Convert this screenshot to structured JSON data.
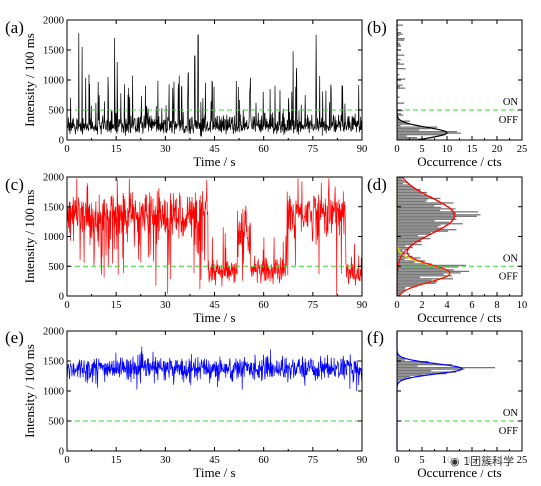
{
  "threshold_labels": {
    "on": "ON",
    "off": "OFF"
  },
  "colors": {
    "a": "#000000",
    "c": "#ff0000",
    "e": "#0000ff",
    "threshold": "#33dd33",
    "hist": "#777777",
    "fit_black": "#000000",
    "fit_red": "#ff0000",
    "fit_yellow": "#e8e800",
    "fit_blue": "#0000ff"
  },
  "watermark": {
    "icon": "wechat-logo-icon",
    "text": "1团簇科学"
  },
  "chart_data": [
    {
      "id": "a",
      "panel_label": "(a)",
      "type": "line",
      "xlabel": "Time / s",
      "ylabel": "Intensity / 100 ms",
      "xlim": [
        0,
        90
      ],
      "ylim": [
        0,
        2000
      ],
      "xticks": [
        "0",
        "15",
        "30",
        "45",
        "60",
        "75",
        "90"
      ],
      "yticks": [
        "0",
        "500",
        "1000",
        "1500",
        "2000"
      ],
      "threshold": 500,
      "series": [
        {
          "values_description": "blinking trace, baseline ~120-400 with spikes to ~1800",
          "color": "#000000"
        }
      ],
      "trace_params": {
        "mode": "blink_a",
        "n": 900
      }
    },
    {
      "id": "b",
      "panel_label": "(b)",
      "type": "bar",
      "xlabel": "Occurrence / cts",
      "xlim": [
        0,
        25
      ],
      "ylim": [
        0,
        2000
      ],
      "xticks": [
        "0",
        "5",
        "10",
        "15",
        "20",
        "25"
      ],
      "threshold": 500,
      "peaks": [
        {
          "center": 120,
          "sigma": 90,
          "amplitude": 10
        }
      ],
      "fit_color": "#000000"
    },
    {
      "id": "c",
      "panel_label": "(c)",
      "type": "line",
      "xlabel": "Time / s",
      "ylabel": "Intensity / 100 ms",
      "xlim": [
        0,
        90
      ],
      "ylim": [
        0,
        2000
      ],
      "xticks": [
        "0",
        "15",
        "30",
        "45",
        "60",
        "75",
        "90"
      ],
      "yticks": [
        "0",
        "500",
        "1000",
        "1500",
        "2000"
      ],
      "threshold": 500,
      "segments": [
        {
          "from": 0,
          "to": 43,
          "level": 1350
        },
        {
          "from": 43,
          "to": 52,
          "level": 380
        },
        {
          "from": 52,
          "to": 56,
          "level": 1100
        },
        {
          "from": 56,
          "to": 67,
          "level": 420
        },
        {
          "from": 67,
          "to": 85,
          "level": 1400
        },
        {
          "from": 85,
          "to": 90,
          "level": 380
        }
      ],
      "trace_params": {
        "mode": "segments",
        "n": 900
      }
    },
    {
      "id": "d",
      "panel_label": "(d)",
      "type": "bar",
      "xlabel": "Occurrence / cts",
      "xlim": [
        0,
        10
      ],
      "ylim": [
        0,
        2000
      ],
      "xticks": [
        "0",
        "2",
        "4",
        "6",
        "8",
        "10"
      ],
      "threshold": 500,
      "peaks": [
        {
          "center": 380,
          "sigma": 150,
          "amplitude": 4.2,
          "color": "#e8e800"
        },
        {
          "center": 1350,
          "sigma": 300,
          "amplitude": 4.6,
          "color": "#ff0000"
        }
      ],
      "fit_color": "#ff0000"
    },
    {
      "id": "e",
      "panel_label": "(e)",
      "type": "line",
      "xlabel": "Time / s",
      "ylabel": "Intensity / 100 ms",
      "xlim": [
        0,
        90
      ],
      "ylim": [
        0,
        2000
      ],
      "xticks": [
        "0",
        "15",
        "30",
        "45",
        "60",
        "75",
        "90"
      ],
      "yticks": [
        "0",
        "500",
        "1000",
        "1500",
        "2000"
      ],
      "threshold": 500,
      "segments": [
        {
          "from": 0,
          "to": 90,
          "level": 1380
        }
      ],
      "trace_params": {
        "mode": "stable",
        "n": 900
      }
    },
    {
      "id": "f",
      "panel_label": "(f)",
      "type": "bar",
      "xlabel": "Occurrence / cts",
      "xlim": [
        0,
        25
      ],
      "ylim": [
        0,
        2000
      ],
      "xticks": [
        "0",
        "5",
        "10",
        "15",
        "20",
        "25"
      ],
      "threshold": 500,
      "peaks": [
        {
          "center": 1370,
          "sigma": 85,
          "amplitude": 13
        }
      ],
      "fit_color": "#0000ff"
    }
  ]
}
